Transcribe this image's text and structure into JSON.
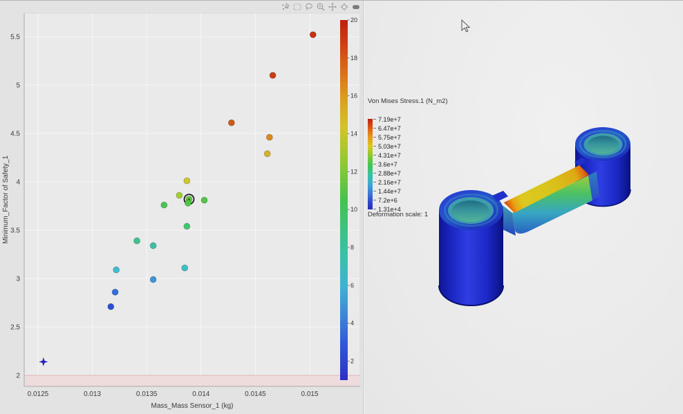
{
  "app": {
    "left_panel_bg": "#e3e3e3",
    "plot_bg": "#eaeaea",
    "right_panel_bg": "#ebebeb",
    "divider_color": "#c9c9c9"
  },
  "toolbar": {
    "icons": [
      "select-points",
      "box-select",
      "lasso-select",
      "zoom-in",
      "pan",
      "autoscale",
      "snapshot"
    ]
  },
  "chart_data": {
    "type": "scatter",
    "title": "",
    "xlabel": "Mass_Mass Sensor_1 (kg)",
    "ylabel": "Minimum_Factor of Safety_1",
    "xlim": [
      0.012373,
      0.015464
    ],
    "ylim": [
      1.886,
      5.743
    ],
    "grid": true,
    "x_ticks": [
      0.0125,
      0.013,
      0.0135,
      0.014,
      0.0145,
      0.015
    ],
    "x_tick_labels": [
      "0.0125",
      "0.013",
      "0.0135",
      "0.014",
      "0.0145",
      "0.015"
    ],
    "y_ticks": [
      2,
      2.5,
      3,
      3.5,
      4,
      4.5,
      5,
      5.5
    ],
    "y_tick_labels": [
      "2",
      "2.5",
      "3",
      "3.5",
      "4",
      "4.5",
      "5",
      "5.5"
    ],
    "threshold_band": {
      "y_from": 1.886,
      "y_to": 2.0,
      "fill": "#eed9d9",
      "line_color": "#e3bdbd"
    },
    "colorbar": {
      "min": 1,
      "max": 20,
      "ticks": [
        2,
        4,
        6,
        8,
        10,
        12,
        14,
        16,
        18,
        20
      ],
      "gradient": [
        [
          "0%",
          "#c01e0e"
        ],
        [
          "6%",
          "#cf3c12"
        ],
        [
          "14%",
          "#d96c18"
        ],
        [
          "22%",
          "#dd9f1e"
        ],
        [
          "30%",
          "#d2c428"
        ],
        [
          "40%",
          "#8fc832"
        ],
        [
          "50%",
          "#44c24e"
        ],
        [
          "58%",
          "#3cc382"
        ],
        [
          "66%",
          "#3ac0ab"
        ],
        [
          "74%",
          "#3fb2d2"
        ],
        [
          "82%",
          "#3c86d8"
        ],
        [
          "90%",
          "#3258d8"
        ],
        [
          "100%",
          "#2c2fc4"
        ]
      ]
    },
    "points": [
      {
        "x": 0.01503,
        "y": 5.52,
        "color": "#c9310f"
      },
      {
        "x": 0.01466,
        "y": 5.1,
        "color": "#cc3d11"
      },
      {
        "x": 0.01428,
        "y": 4.61,
        "color": "#cf5a16"
      },
      {
        "x": 0.01463,
        "y": 4.46,
        "color": "#d98a1c"
      },
      {
        "x": 0.01461,
        "y": 4.29,
        "color": "#d9b222"
      },
      {
        "x": 0.01387,
        "y": 4.01,
        "color": "#cfc929"
      },
      {
        "x": 0.0138,
        "y": 3.86,
        "color": "#a2cf30"
      },
      {
        "x": 0.01389,
        "y": 3.82,
        "color": "#59c93a",
        "selected": true
      },
      {
        "x": 0.01388,
        "y": 3.78,
        "color": "#4cc943"
      },
      {
        "x": 0.01403,
        "y": 3.81,
        "color": "#50c844"
      },
      {
        "x": 0.01366,
        "y": 3.76,
        "color": "#47c654"
      },
      {
        "x": 0.01387,
        "y": 3.54,
        "color": "#41c76d"
      },
      {
        "x": 0.01341,
        "y": 3.39,
        "color": "#3cc48e"
      },
      {
        "x": 0.01356,
        "y": 3.34,
        "color": "#3ac2a4"
      },
      {
        "x": 0.01322,
        "y": 3.09,
        "color": "#41bdd1"
      },
      {
        "x": 0.01385,
        "y": 3.11,
        "color": "#3dbfc6"
      },
      {
        "x": 0.01356,
        "y": 2.99,
        "color": "#3f93dd"
      },
      {
        "x": 0.01321,
        "y": 2.86,
        "color": "#2f6ede"
      },
      {
        "x": 0.01317,
        "y": 2.71,
        "color": "#2c4fd8"
      },
      {
        "x": 0.01255,
        "y": 2.14,
        "color": "#2524b4",
        "marker": "star4"
      }
    ]
  },
  "fea": {
    "title": "Von Mises Stress.1 (N_m2)",
    "legend_values": [
      "7.19e+7",
      "6.47e+7",
      "5.75e+7",
      "5.03e+7",
      "4.31e+7",
      "3.6e+7",
      "2.88e+7",
      "2.16e+7",
      "1.44e+7",
      "7.2e+6",
      "1.31e+4"
    ],
    "deformation_label": "Deformation scale: 1",
    "colorbar_gradient": [
      [
        "0%",
        "#c01e0e"
      ],
      [
        "10%",
        "#dd5a14"
      ],
      [
        "20%",
        "#e39a1a"
      ],
      [
        "30%",
        "#ddc81e"
      ],
      [
        "42%",
        "#7ec832"
      ],
      [
        "52%",
        "#3cc45a"
      ],
      [
        "62%",
        "#38c2a4"
      ],
      [
        "72%",
        "#3aa8d4"
      ],
      [
        "82%",
        "#3d7ad8"
      ],
      [
        "92%",
        "#3046cc"
      ],
      [
        "100%",
        "#2828b8"
      ]
    ]
  }
}
